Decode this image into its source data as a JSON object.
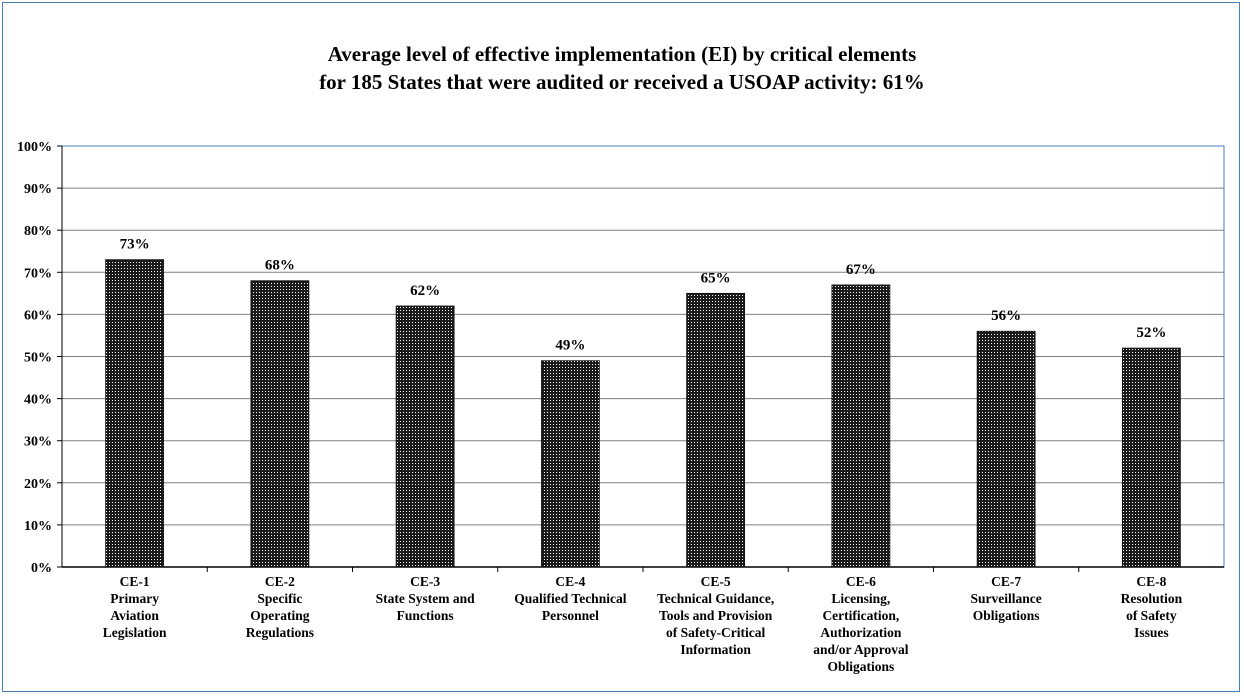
{
  "chart_data": {
    "type": "bar",
    "title_lines": [
      "Average level of effective implementation (EI) by critical elements",
      "for 185 States that were audited or received a USOAP activity: 61%"
    ],
    "xlabel": "",
    "ylabel": "",
    "ylim": [
      0,
      100
    ],
    "y_ticks": [
      "0%",
      "10%",
      "20%",
      "30%",
      "40%",
      "50%",
      "60%",
      "70%",
      "80%",
      "90%",
      "100%"
    ],
    "categories": [
      [
        "CE-1",
        "Primary",
        "Aviation",
        "Legislation"
      ],
      [
        "CE-2",
        "Specific",
        "Operating",
        "Regulations"
      ],
      [
        "CE-3",
        "State System and",
        "Functions"
      ],
      [
        "CE-4",
        "Qualified Technical",
        "Personnel"
      ],
      [
        "CE-5",
        "Technical Guidance,",
        "Tools and Provision",
        "of Safety-Critical",
        "Information"
      ],
      [
        "CE-6",
        "Licensing,",
        "Certification,",
        "Authorization",
        "and/or Approval",
        "Obligations"
      ],
      [
        "CE-7",
        "Surveillance",
        "Obligations"
      ],
      [
        "CE-8",
        "Resolution",
        "of Safety",
        "Issues"
      ]
    ],
    "values": [
      73,
      68,
      62,
      49,
      65,
      67,
      56,
      52
    ],
    "data_labels": [
      "73%",
      "68%",
      "62%",
      "49%",
      "65%",
      "67%",
      "56%",
      "52%"
    ],
    "grid": true,
    "legend": "none",
    "colors": {
      "bar": "#1a1a1a",
      "bar_pattern": "dotted",
      "grid": "#808080",
      "plot_border": "#4a7ebb"
    }
  }
}
